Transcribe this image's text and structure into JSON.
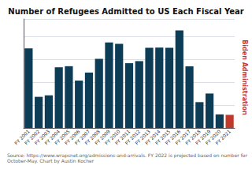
{
  "chart_data": {
    "type": "bar",
    "title": "Number of Refugees Admitted to US Each Fiscal Year",
    "categories": [
      "FY 2001",
      "FY 2002",
      "FY 2003",
      "FY 2004",
      "FY 2005",
      "FY 2006",
      "FY 2007",
      "FY 2008",
      "FY 2009",
      "FY 2010",
      "FY 2011",
      "FY 2012",
      "FY 2013",
      "FY 2014",
      "FY 2015",
      "FY 2016",
      "FY 2017",
      "FY 2018",
      "FY 2019",
      "FY 2020",
      "FY 2021"
    ],
    "values": [
      69304,
      27110,
      28422,
      52868,
      53813,
      41277,
      48282,
      60191,
      74602,
      73311,
      56424,
      58238,
      69926,
      69987,
      69933,
      84994,
      53716,
      22491,
      30000,
      11814,
      11411
    ],
    "colors": [
      "#0d3d56",
      "#0d3d56",
      "#0d3d56",
      "#0d3d56",
      "#0d3d56",
      "#0d3d56",
      "#0d3d56",
      "#0d3d56",
      "#0d3d56",
      "#0d3d56",
      "#0d3d56",
      "#0d3d56",
      "#0d3d56",
      "#0d3d56",
      "#0d3d56",
      "#0d3d56",
      "#0d3d56",
      "#0d3d56",
      "#0d3d56",
      "#0d3d56",
      "#c0392b"
    ],
    "ylim": [
      0,
      95000
    ],
    "yticks": [
      0,
      20000,
      40000,
      60000,
      80000
    ],
    "grid": true,
    "tick_labels": "x",
    "annotations": [
      "Biden Administration"
    ],
    "footnote": "Source: https://www.wrapsnet.org/admissions-and-arrivals. FY 2022 is projected based on number for October-May. Chart by Austin Kocher"
  }
}
